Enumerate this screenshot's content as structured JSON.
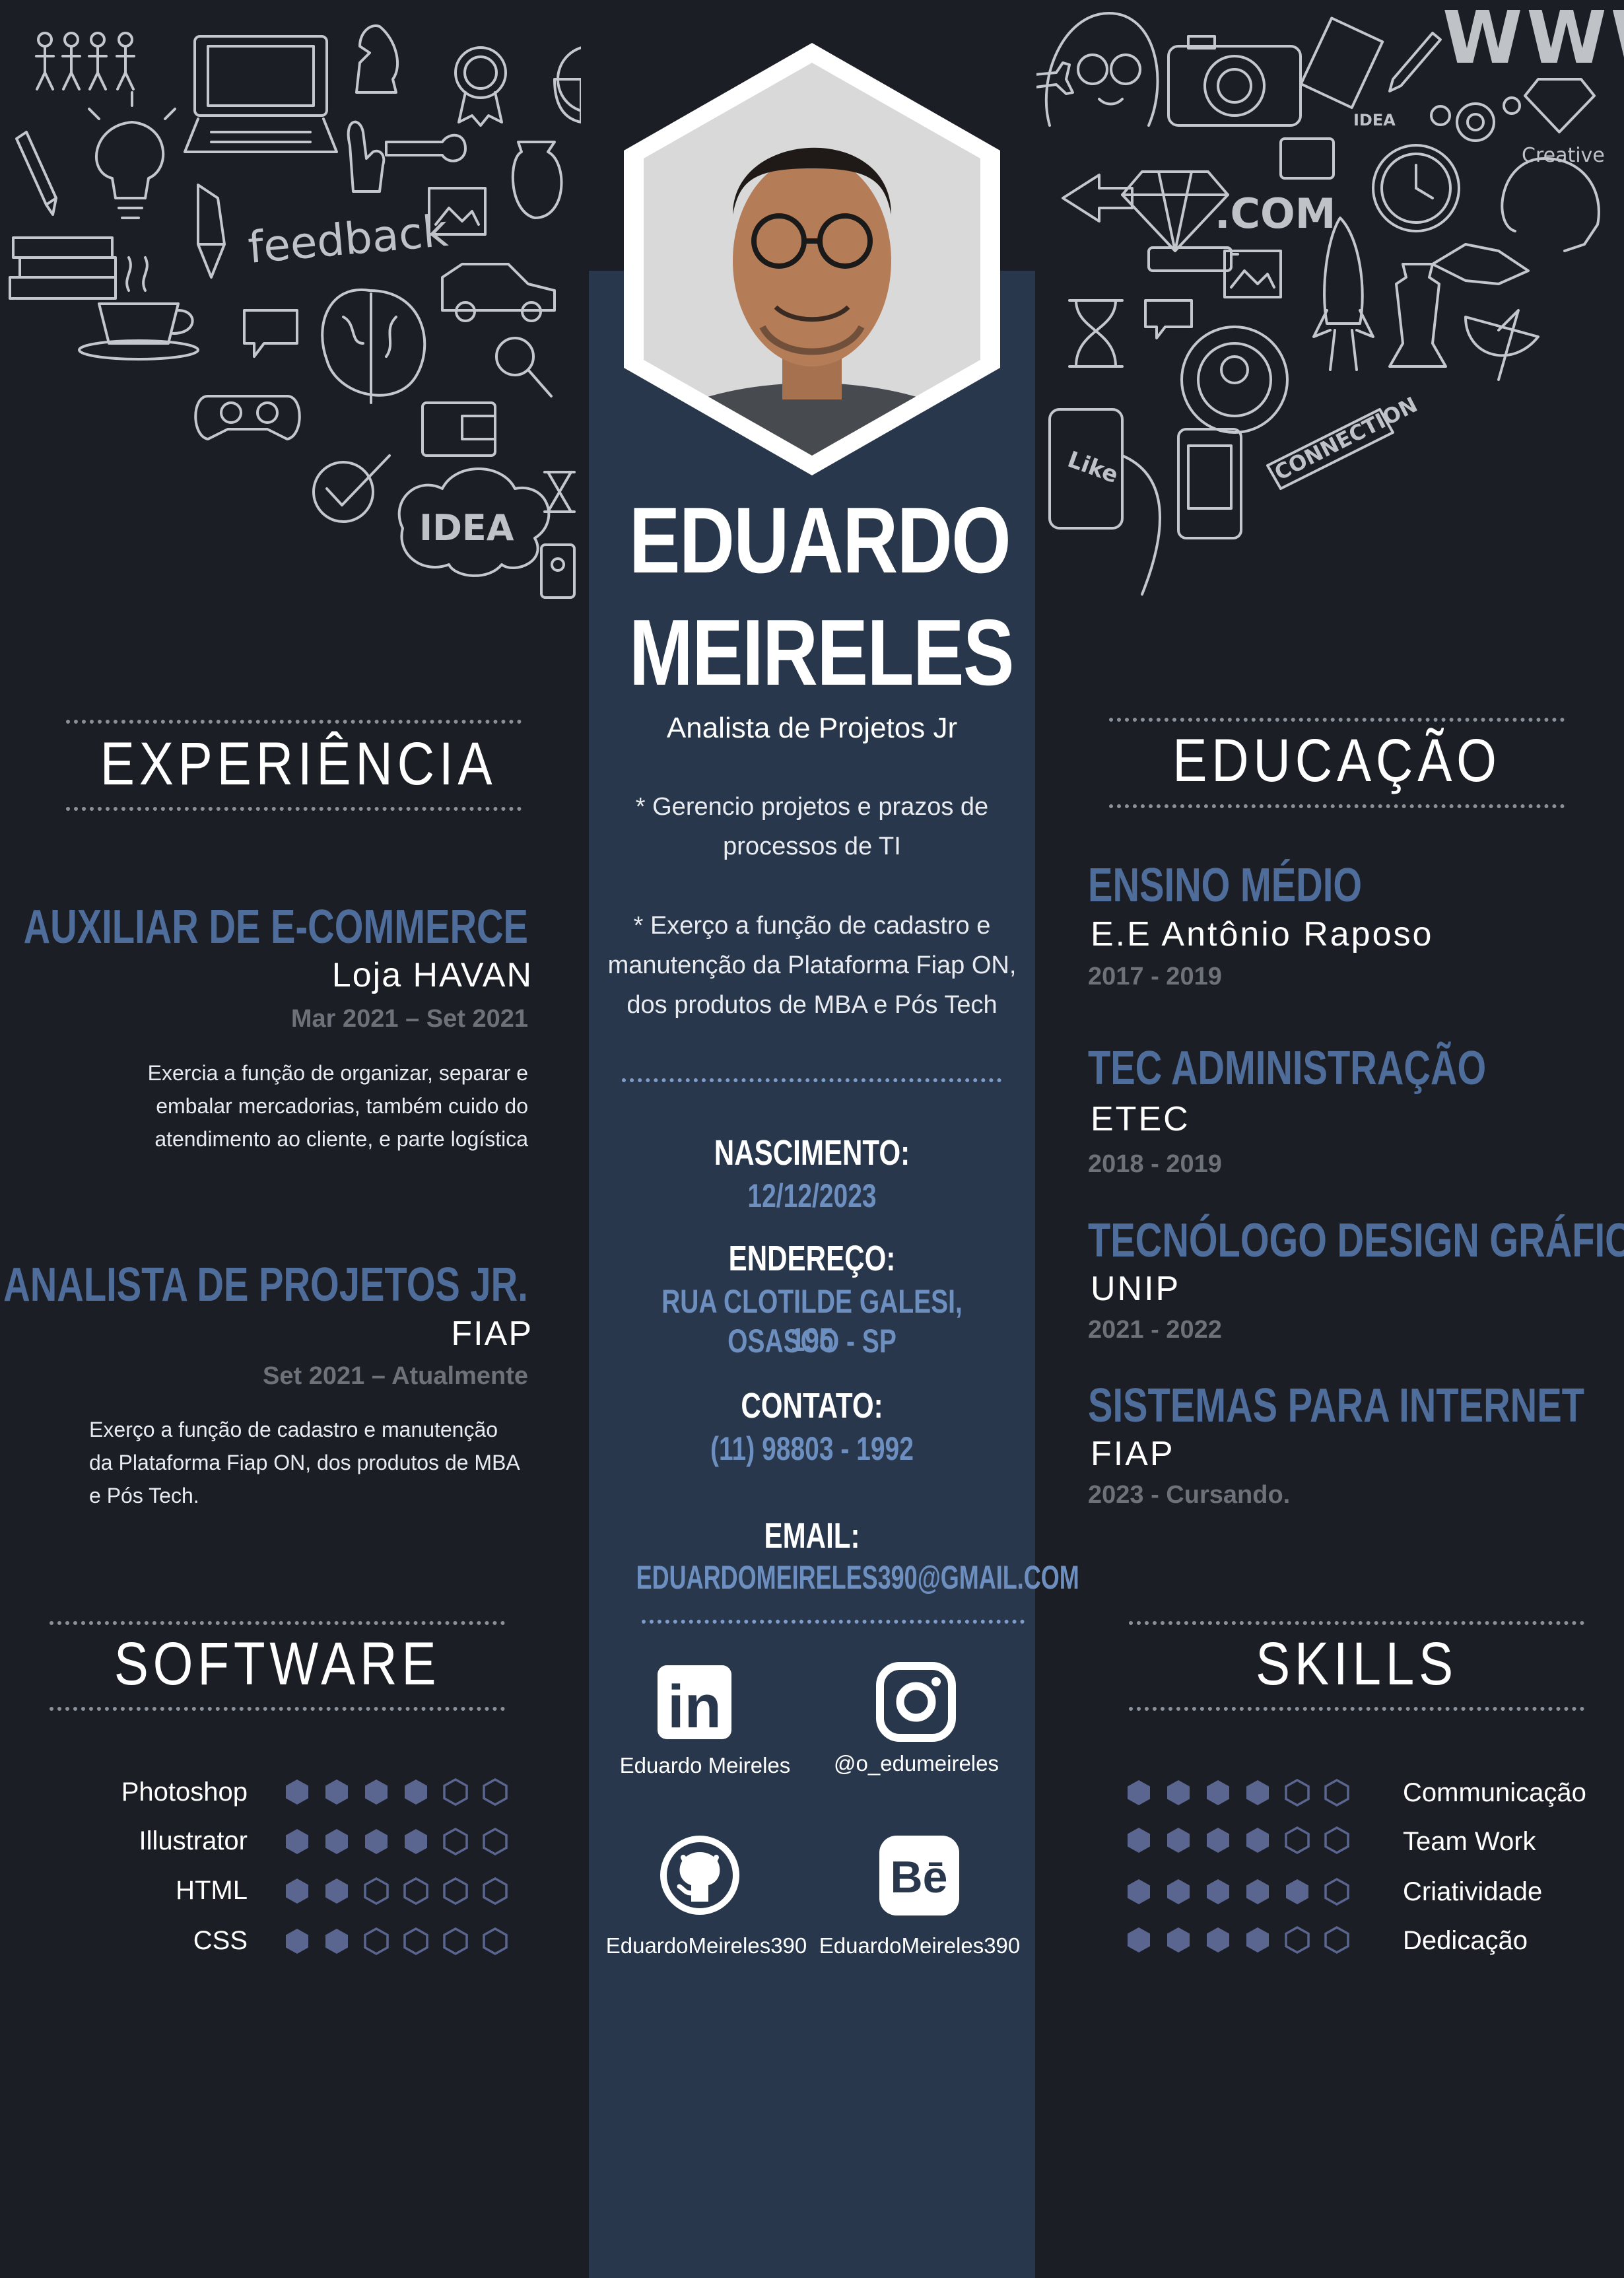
{
  "header": {
    "first_name": "EDUARDO",
    "last_name": "MEIRELES",
    "role": "Analista de Projetos Jr",
    "bullets": [
      {
        "line1": "* Gerencio projetos e prazos de",
        "line2": "processos de TI"
      },
      {
        "line1": "* Exerço a função de cadastro e",
        "line2": "manutenção da Plataforma Fiap ON,",
        "line3": "dos produtos de MBA e Pós Tech"
      }
    ]
  },
  "doodles": {
    "feedback": "feedback",
    "idea": "IDEA",
    "www": "WWW",
    "com": ".COM",
    "creative": "Creative",
    "connection": "CONNECTION",
    "like": "Like",
    "idea_small": "IDEA"
  },
  "info": {
    "birth_label": "NASCIMENTO:",
    "birth_value": "12/12/2023",
    "address_label": "ENDEREÇO:",
    "address_line1": "RUA CLOTILDE GALESI, 195",
    "address_line2": "OSASCO - SP",
    "contact_label": "CONTATO:",
    "contact_value": "(11) 98803 - 1992",
    "email_label": "EMAIL:",
    "email_value": "EDUARDOMEIRELES390@GMAIL.COM"
  },
  "social": {
    "linkedin": "Eduardo Meireles",
    "instagram": "@o_edumeireles",
    "github": "EduardoMeireles390",
    "behance": "EduardoMeireles390",
    "linkedin_glyph": "in",
    "behance_glyph": "Bē"
  },
  "experience": {
    "title": "EXPERIÊNCIA",
    "items": [
      {
        "role": "AUXILIAR DE E-COMMERCE",
        "company": "Loja HAVAN",
        "period": "Mar 2021 – Set 2021",
        "desc_lines": [
          "Exercia a função de organizar, separar e",
          "embalar mercadorias, também cuido do",
          "atendimento ao cliente, e parte logística"
        ]
      },
      {
        "role": "ANALISTA DE PROJETOS JR.",
        "company": "FIAP",
        "period": "Set 2021 – Atualmente",
        "desc_lines": [
          "Exerço a função de cadastro e manutenção",
          "da Plataforma Fiap ON, dos produtos de MBA",
          "e Pós Tech."
        ]
      }
    ]
  },
  "education": {
    "title": "EDUCAÇÃO",
    "items": [
      {
        "course": "ENSINO MÉDIO",
        "school": "E.E Antônio Raposo",
        "years": "2017 - 2019"
      },
      {
        "course": "TEC ADMINISTRAÇÃO",
        "school": "ETEC",
        "years": "2018 - 2019"
      },
      {
        "course": "TECNÓLOGO DESIGN GRÁFICO",
        "school": "UNIP",
        "years": "2021 - 2022"
      },
      {
        "course": "SISTEMAS PARA INTERNET",
        "school": "FIAP",
        "years": "2023 - Cursando."
      }
    ]
  },
  "software": {
    "title": "SOFTWARE",
    "items": [
      {
        "name": "Photoshop",
        "level": 4,
        "max": 6
      },
      {
        "name": "Illustrator",
        "level": 4,
        "max": 6
      },
      {
        "name": "HTML",
        "level": 2,
        "max": 6
      },
      {
        "name": "CSS",
        "level": 2,
        "max": 6
      }
    ]
  },
  "skills": {
    "title": "SKILLS",
    "items": [
      {
        "name": "Communicação",
        "level": 4,
        "max": 6
      },
      {
        "name": "Team Work",
        "level": 4,
        "max": 6
      },
      {
        "name": "Criatividade",
        "level": 5,
        "max": 6
      },
      {
        "name": "Dedicação",
        "level": 4,
        "max": 6
      }
    ]
  },
  "colors": {
    "background": "#1c1e25",
    "center_column": "#28374b",
    "accent": "#4f6d9b",
    "accent_light": "#6d8fc0",
    "rating_fill": "#5a6690",
    "muted": "#6d7179"
  }
}
